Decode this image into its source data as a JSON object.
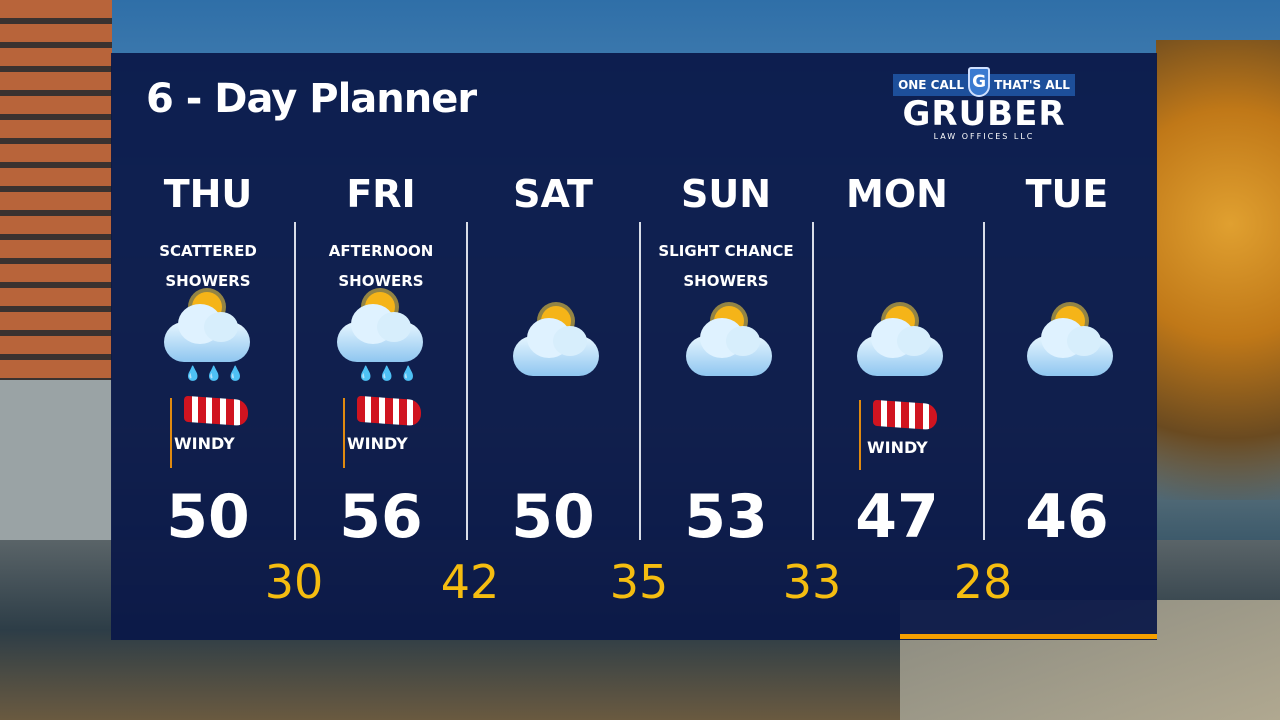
{
  "title": "6 - Day Planner",
  "sponsor": {
    "tagline_left": "ONE CALL",
    "shield_letter": "G",
    "tagline_right": "THAT'S ALL",
    "name": "GRUBER",
    "subtitle": "LAW OFFICES LLC"
  },
  "days": [
    {
      "day": "THU",
      "condition_line1": "SCATTERED",
      "condition_line2": "SHOWERS",
      "icon": "partly-cloudy-rain-icon",
      "windy": "WINDY",
      "high": "50"
    },
    {
      "day": "FRI",
      "condition_line1": "AFTERNOON",
      "condition_line2": "SHOWERS",
      "icon": "partly-cloudy-rain-icon",
      "windy": "WINDY",
      "high": "56"
    },
    {
      "day": "SAT",
      "condition_line1": "",
      "condition_line2": "",
      "icon": "partly-cloudy-icon",
      "windy": "",
      "high": "50"
    },
    {
      "day": "SUN",
      "condition_line1": "SLIGHT CHANCE",
      "condition_line2": "SHOWERS",
      "icon": "partly-cloudy-icon",
      "windy": "",
      "high": "53"
    },
    {
      "day": "MON",
      "condition_line1": "",
      "condition_line2": "",
      "icon": "partly-cloudy-icon",
      "windy": "WINDY",
      "high": "47"
    },
    {
      "day": "TUE",
      "condition_line1": "",
      "condition_line2": "",
      "icon": "partly-cloudy-icon",
      "windy": "",
      "high": "46"
    }
  ],
  "lows": [
    "30",
    "42",
    "35",
    "33",
    "28"
  ],
  "colors": {
    "panel": "#0a1848",
    "low": "#f5bd10",
    "accent": "#f5a000"
  }
}
